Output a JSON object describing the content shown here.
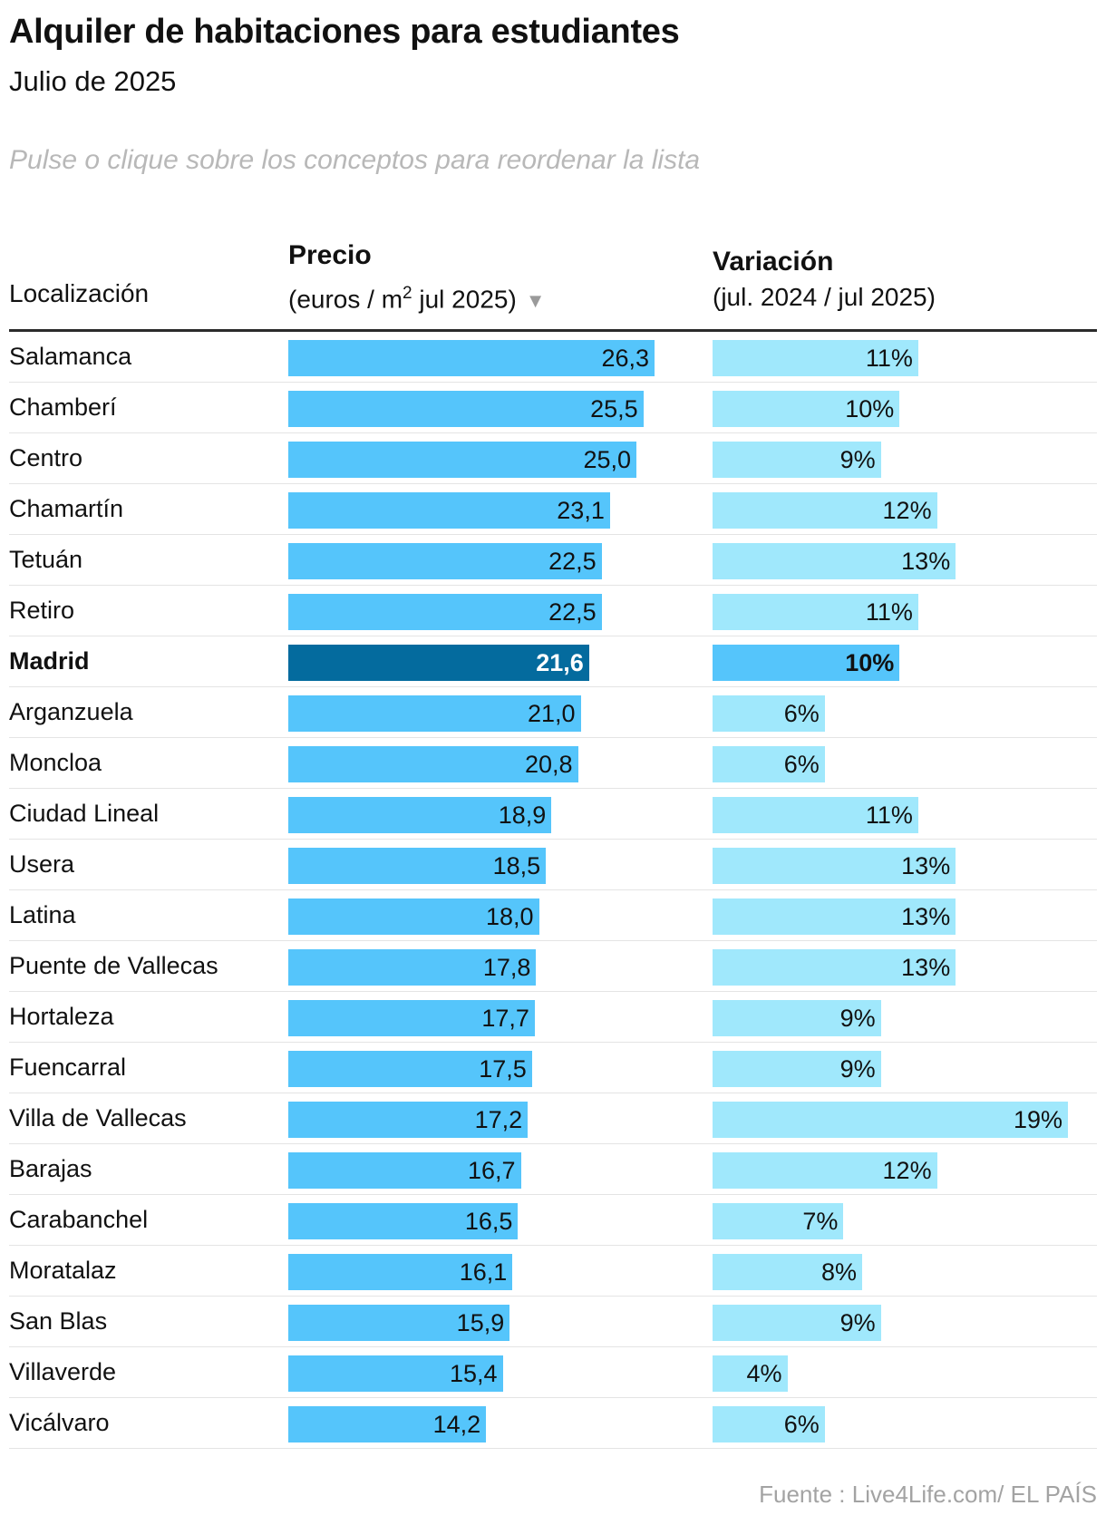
{
  "title": "Alquiler de habitaciones para estudiantes",
  "subtitle": "Julio de 2025",
  "hint": "Pulse o clique sobre los conceptos para reordenar la lista",
  "headers": {
    "location": "Localización",
    "price_title": "Precio",
    "price_sub_prefix": "(euros / m",
    "price_sub_sup": "2",
    "price_sub_suffix": " jul 2025)",
    "sort_indicator": "▼",
    "var_title": "Variación",
    "var_sub": "(jul. 2024 / jul 2025)"
  },
  "source": "Fuente : Live4Life.com/ EL PAÍS",
  "colors": {
    "price_bar": "#55c5fb",
    "var_bar": "#a0e8fc",
    "highlight_price_bar": "#046b9e",
    "highlight_var_bar": "#55c5fb"
  },
  "chart_data": {
    "type": "bar",
    "title": "Alquiler de habitaciones para estudiantes",
    "subtitle": "Julio de 2025",
    "sorted_by": "Precio",
    "highlight": "Madrid",
    "series": [
      {
        "name": "Precio (euros / m2 jul 2025)",
        "unit": "",
        "xlim": [
          0,
          26.3
        ]
      },
      {
        "name": "Variación (jul. 2024 / jul 2025)",
        "unit": "%",
        "xlim": [
          0,
          19
        ]
      }
    ],
    "rows": [
      {
        "label": "Salamanca",
        "price": 26.3,
        "price_label": "26,3",
        "variation": 11,
        "variation_label": "11%"
      },
      {
        "label": "Chamberí",
        "price": 25.5,
        "price_label": "25,5",
        "variation": 10,
        "variation_label": "10%"
      },
      {
        "label": "Centro",
        "price": 25.0,
        "price_label": "25,0",
        "variation": 9,
        "variation_label": "9%"
      },
      {
        "label": "Chamartín",
        "price": 23.1,
        "price_label": "23,1",
        "variation": 12,
        "variation_label": "12%"
      },
      {
        "label": "Tetuán",
        "price": 22.5,
        "price_label": "22,5",
        "variation": 13,
        "variation_label": "13%"
      },
      {
        "label": "Retiro",
        "price": 22.5,
        "price_label": "22,5",
        "variation": 11,
        "variation_label": "11%"
      },
      {
        "label": "Madrid",
        "price": 21.6,
        "price_label": "21,6",
        "variation": 10,
        "variation_label": "10%",
        "highlight": true
      },
      {
        "label": "Arganzuela",
        "price": 21.0,
        "price_label": "21,0",
        "variation": 6,
        "variation_label": "6%"
      },
      {
        "label": "Moncloa",
        "price": 20.8,
        "price_label": "20,8",
        "variation": 6,
        "variation_label": "6%"
      },
      {
        "label": "Ciudad Lineal",
        "price": 18.9,
        "price_label": "18,9",
        "variation": 11,
        "variation_label": "11%"
      },
      {
        "label": "Usera",
        "price": 18.5,
        "price_label": "18,5",
        "variation": 13,
        "variation_label": "13%"
      },
      {
        "label": "Latina",
        "price": 18.0,
        "price_label": "18,0",
        "variation": 13,
        "variation_label": "13%"
      },
      {
        "label": "Puente de Vallecas",
        "price": 17.8,
        "price_label": "17,8",
        "variation": 13,
        "variation_label": "13%"
      },
      {
        "label": "Hortaleza",
        "price": 17.7,
        "price_label": "17,7",
        "variation": 9,
        "variation_label": "9%"
      },
      {
        "label": "Fuencarral",
        "price": 17.5,
        "price_label": "17,5",
        "variation": 9,
        "variation_label": "9%"
      },
      {
        "label": "Villa de Vallecas",
        "price": 17.2,
        "price_label": "17,2",
        "variation": 19,
        "variation_label": "19%"
      },
      {
        "label": "Barajas",
        "price": 16.7,
        "price_label": "16,7",
        "variation": 12,
        "variation_label": "12%"
      },
      {
        "label": "Carabanchel",
        "price": 16.5,
        "price_label": "16,5",
        "variation": 7,
        "variation_label": "7%"
      },
      {
        "label": "Moratalaz",
        "price": 16.1,
        "price_label": "16,1",
        "variation": 8,
        "variation_label": "8%"
      },
      {
        "label": "San Blas",
        "price": 15.9,
        "price_label": "15,9",
        "variation": 9,
        "variation_label": "9%"
      },
      {
        "label": "Villaverde",
        "price": 15.4,
        "price_label": "15,4",
        "variation": 4,
        "variation_label": "4%"
      },
      {
        "label": "Vicálvaro",
        "price": 14.2,
        "price_label": "14,2",
        "variation": 6,
        "variation_label": "6%"
      }
    ]
  }
}
